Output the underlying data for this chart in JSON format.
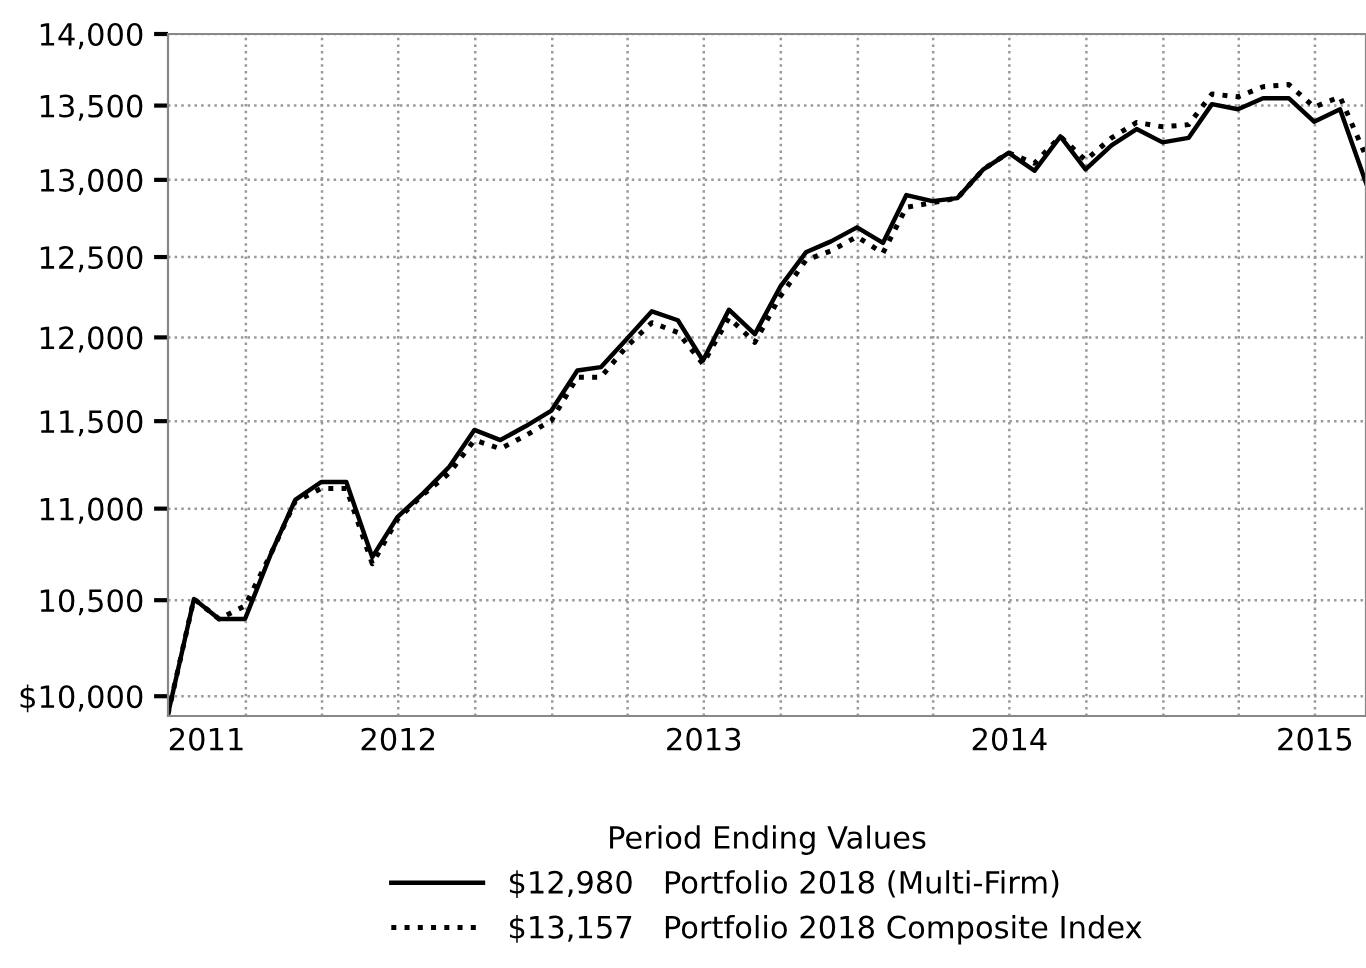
{
  "chart_data": {
    "type": "line",
    "x": [
      "2011-09-30",
      "2011-10-31",
      "2011-11-30",
      "2011-12-31",
      "2012-01-31",
      "2012-02-29",
      "2012-03-31",
      "2012-04-30",
      "2012-05-31",
      "2012-06-30",
      "2012-07-31",
      "2012-08-31",
      "2012-09-30",
      "2012-10-31",
      "2012-11-30",
      "2012-12-31",
      "2013-01-31",
      "2013-02-28",
      "2013-03-31",
      "2013-04-30",
      "2013-05-31",
      "2013-06-30",
      "2013-07-31",
      "2013-08-31",
      "2013-09-30",
      "2013-10-31",
      "2013-11-30",
      "2013-12-31",
      "2014-01-31",
      "2014-02-28",
      "2014-03-31",
      "2014-04-30",
      "2014-05-31",
      "2014-06-30",
      "2014-07-31",
      "2014-08-31",
      "2014-09-30",
      "2014-10-31",
      "2014-11-30",
      "2014-12-31",
      "2015-01-31",
      "2015-02-28",
      "2015-03-31",
      "2015-04-30",
      "2015-05-31",
      "2015-06-30",
      "2015-07-31",
      "2015-08-31"
    ],
    "series": [
      {
        "name": "$12,980   Portfolio 2018 (Multi-Firm)",
        "color": "#000000",
        "line_style": "solid",
        "values": [
          9910,
          10507,
          10400,
          10400,
          10751,
          11049,
          11150,
          11150,
          10732,
          10953,
          11087,
          11237,
          11449,
          11390,
          11470,
          11562,
          11800,
          11820,
          11990,
          12160,
          12105,
          11860,
          12170,
          12020,
          12310,
          12530,
          12600,
          12690,
          12590,
          12900,
          12860,
          12880,
          13070,
          13180,
          13060,
          13290,
          13070,
          13230,
          13340,
          13250,
          13280,
          13510,
          13475,
          13550,
          13550,
          13390,
          13475,
          12980
        ]
      },
      {
        "name": "$13,157   Portfolio 2018 Composite Index",
        "color": "#000000",
        "line_style": "dotted",
        "values": [
          9910,
          10507,
          10400,
          10470,
          10751,
          11040,
          11113,
          11113,
          10696,
          10940,
          11080,
          11200,
          11390,
          11340,
          11416,
          11504,
          11760,
          11760,
          11945,
          12090,
          12030,
          11840,
          12120,
          11970,
          12250,
          12480,
          12540,
          12630,
          12525,
          12820,
          12850,
          12880,
          13070,
          13180,
          13110,
          13290,
          13130,
          13280,
          13385,
          13355,
          13370,
          13580,
          13560,
          13630,
          13645,
          13490,
          13560,
          13157
        ]
      }
    ],
    "log": "y",
    "ylim": [
      9900,
      14000
    ],
    "yticks": [
      {
        "value": 10000,
        "label": "$10,000"
      },
      {
        "value": 10500,
        "label": "10,500"
      },
      {
        "value": 11000,
        "label": "11,000"
      },
      {
        "value": 11500,
        "label": "11,500"
      },
      {
        "value": 12000,
        "label": "12,000"
      },
      {
        "value": 12500,
        "label": "12,500"
      },
      {
        "value": 13000,
        "label": "13,000"
      },
      {
        "value": 13500,
        "label": "13,500"
      },
      {
        "value": 14000,
        "label": "14,000"
      }
    ],
    "xlim": [
      "2011-09-30",
      "2015-08-31"
    ],
    "xticks": [
      {
        "value": "2011-11-15",
        "label": "2011"
      },
      {
        "value": "2012-07-01",
        "label": "2012"
      },
      {
        "value": "2013-07-01",
        "label": "2013"
      },
      {
        "value": "2014-07-01",
        "label": "2014"
      },
      {
        "value": "2015-07-01",
        "label": "2015"
      },
      {
        "value": "2012-01-01",
        "label": null
      },
      {
        "value": "2012-04-01",
        "label": null
      },
      {
        "value": "2012-07-01",
        "label": null
      },
      {
        "value": "2012-10-01",
        "label": null
      },
      {
        "value": "2013-01-01",
        "label": null
      },
      {
        "value": "2013-04-01",
        "label": null
      },
      {
        "value": "2013-07-01",
        "label": null
      },
      {
        "value": "2013-10-01",
        "label": null
      },
      {
        "value": "2014-01-01",
        "label": null
      },
      {
        "value": "2014-04-01",
        "label": null
      },
      {
        "value": "2014-07-01",
        "label": null
      },
      {
        "value": "2014-10-01",
        "label": null
      },
      {
        "value": "2015-01-01",
        "label": null
      },
      {
        "value": "2015-04-01",
        "label": null
      },
      {
        "value": "2015-07-01",
        "label": null
      }
    ],
    "grid": true,
    "marker": "none",
    "legend": "bottom",
    "legend_title": "Period Ending Values"
  }
}
